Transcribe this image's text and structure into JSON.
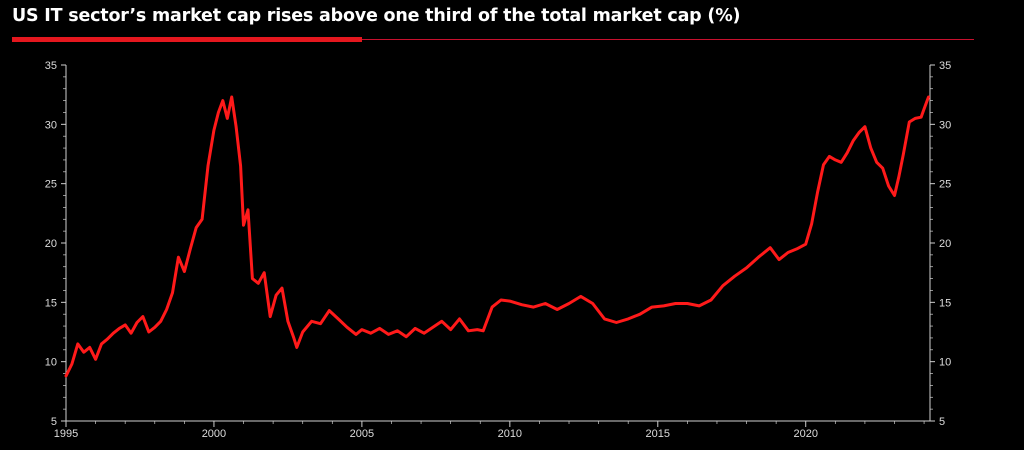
{
  "header": {
    "title": "US IT sector’s market cap rises above one third of the total market cap (%)"
  },
  "colors": {
    "background": "#000000",
    "line": "#ff1a1a",
    "accent": "#e4171e",
    "axis": "#cfcfcf",
    "text": "#ffffff"
  },
  "chart_data": {
    "type": "line",
    "title": "US IT sector’s market cap rises above one third of the total market cap (%)",
    "xlabel": "",
    "ylabel": "",
    "xlim": [
      1995,
      2024.2
    ],
    "ylim": [
      5,
      35
    ],
    "x_ticks": [
      1995,
      2000,
      2005,
      2010,
      2015,
      2020
    ],
    "y_ticks_left": [
      5,
      10,
      15,
      20,
      25,
      30,
      35
    ],
    "y_ticks_right": [
      5,
      10,
      15,
      20,
      25,
      30,
      35
    ],
    "grid": false,
    "legend": "none",
    "series": [
      {
        "x": [
          1995.0,
          1995.2,
          1995.4,
          1995.6,
          1995.8,
          1996.0,
          1996.2,
          1996.4,
          1996.6,
          1996.8,
          1997.0,
          1997.2,
          1997.4,
          1997.6,
          1997.8,
          1998.0,
          1998.2,
          1998.4,
          1998.6,
          1998.8,
          1999.0,
          1999.2,
          1999.4,
          1999.6,
          1999.8,
          2000.0,
          2000.15,
          2000.3,
          2000.45,
          2000.6,
          2000.75,
          2000.9,
          2001.0,
          2001.15,
          2001.3,
          2001.5,
          2001.7,
          2001.9,
          2002.1,
          2002.3,
          2002.5,
          2002.7,
          2002.8,
          2003.0,
          2003.3,
          2003.6,
          2003.9,
          2004.2,
          2004.5,
          2004.8,
          2005.0,
          2005.3,
          2005.6,
          2005.9,
          2006.2,
          2006.5,
          2006.8,
          2007.1,
          2007.4,
          2007.7,
          2008.0,
          2008.3,
          2008.6,
          2008.9,
          2009.1,
          2009.4,
          2009.7,
          2010.0,
          2010.4,
          2010.8,
          2011.2,
          2011.6,
          2012.0,
          2012.4,
          2012.8,
          2013.2,
          2013.6,
          2014.0,
          2014.4,
          2014.8,
          2015.2,
          2015.6,
          2016.0,
          2016.4,
          2016.8,
          2017.2,
          2017.6,
          2018.0,
          2018.4,
          2018.8,
          2019.1,
          2019.4,
          2019.7,
          2020.0,
          2020.2,
          2020.4,
          2020.6,
          2020.8,
          2021.0,
          2021.2,
          2021.4,
          2021.6,
          2021.8,
          2022.0,
          2022.2,
          2022.4,
          2022.6,
          2022.8,
          2023.0,
          2023.15,
          2023.3,
          2023.5,
          2023.7,
          2023.9,
          2024.0,
          2024.15
        ],
        "values": [
          8.8,
          9.8,
          11.5,
          10.8,
          11.2,
          10.2,
          11.5,
          11.9,
          12.4,
          12.8,
          13.1,
          12.4,
          13.3,
          13.8,
          12.5,
          12.9,
          13.4,
          14.4,
          15.8,
          18.8,
          17.6,
          19.5,
          21.3,
          22.0,
          26.5,
          29.5,
          31.0,
          32.0,
          30.5,
          32.3,
          29.8,
          26.5,
          21.5,
          22.8,
          17.0,
          16.6,
          17.5,
          13.8,
          15.6,
          16.2,
          13.4,
          12.0,
          11.2,
          12.5,
          13.4,
          13.2,
          14.3,
          13.6,
          12.9,
          12.3,
          12.7,
          12.4,
          12.8,
          12.3,
          12.6,
          12.1,
          12.8,
          12.4,
          12.9,
          13.4,
          12.7,
          13.6,
          12.6,
          12.7,
          12.6,
          14.6,
          15.2,
          15.1,
          14.8,
          14.6,
          14.9,
          14.4,
          14.9,
          15.5,
          14.9,
          13.6,
          13.3,
          13.6,
          14.0,
          14.6,
          14.7,
          14.9,
          14.9,
          14.7,
          15.2,
          16.4,
          17.2,
          17.9,
          18.8,
          19.6,
          18.6,
          19.2,
          19.5,
          19.9,
          21.6,
          24.3,
          26.6,
          27.3,
          27.0,
          26.8,
          27.6,
          28.6,
          29.3,
          29.8,
          28.0,
          26.8,
          26.3,
          24.8,
          24.0,
          25.6,
          27.5,
          30.2,
          30.5,
          30.6,
          31.3,
          32.3
        ]
      }
    ]
  }
}
